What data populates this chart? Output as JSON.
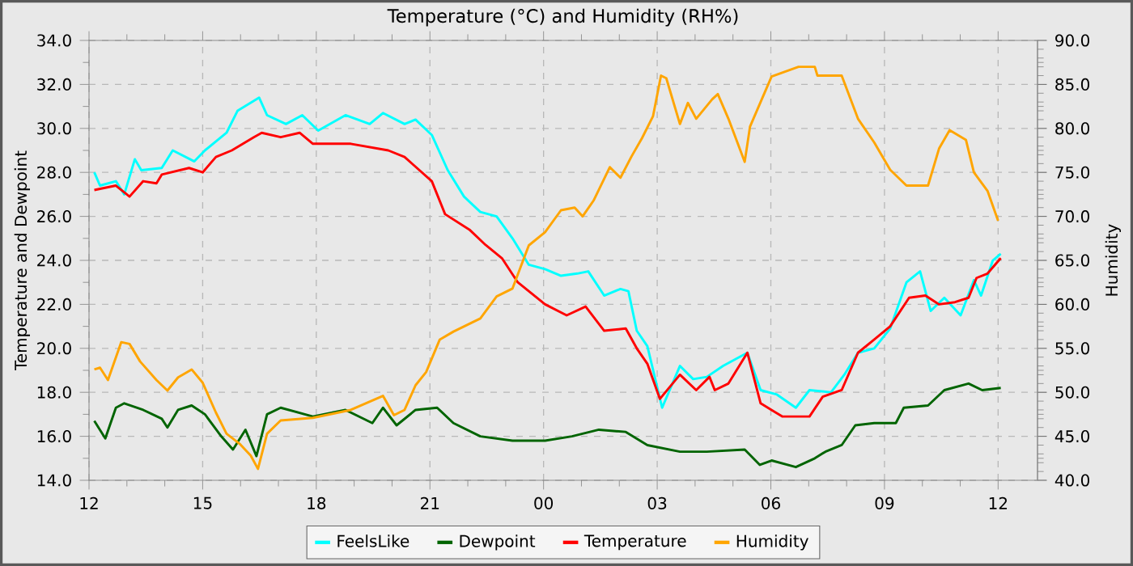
{
  "chart_data": {
    "type": "line",
    "title": "Temperature (°C) and Humidity (RH%)",
    "ylabel": "Temperature and Dewpoint",
    "y2label": "Humidity",
    "xlim": [
      12,
      37.04
    ],
    "xticks": [
      {
        "value": 12,
        "label": "12"
      },
      {
        "value": 15,
        "label": "15"
      },
      {
        "value": 18,
        "label": "18"
      },
      {
        "value": 21,
        "label": "21"
      },
      {
        "value": 24,
        "label": "00"
      },
      {
        "value": 27,
        "label": "03"
      },
      {
        "value": 30,
        "label": "06"
      },
      {
        "value": 33,
        "label": "09"
      },
      {
        "value": 36,
        "label": "12"
      }
    ],
    "ylim": [
      14,
      34
    ],
    "yticks": [
      {
        "value": 14,
        "label": "14.0"
      },
      {
        "value": 16,
        "label": "16.0"
      },
      {
        "value": 18,
        "label": "18.0"
      },
      {
        "value": 20,
        "label": "20.0"
      },
      {
        "value": 22,
        "label": "22.0"
      },
      {
        "value": 24,
        "label": "24.0"
      },
      {
        "value": 26,
        "label": "26.0"
      },
      {
        "value": 28,
        "label": "28.0"
      },
      {
        "value": 30,
        "label": "30.0"
      },
      {
        "value": 32,
        "label": "32.0"
      },
      {
        "value": 34,
        "label": "34.0"
      }
    ],
    "y2lim": [
      40,
      90
    ],
    "y2ticks": [
      {
        "value": 40,
        "label": "40.0"
      },
      {
        "value": 45,
        "label": "45.0"
      },
      {
        "value": 50,
        "label": "50.0"
      },
      {
        "value": 55,
        "label": "55.0"
      },
      {
        "value": 60,
        "label": "60.0"
      },
      {
        "value": 65,
        "label": "65.0"
      },
      {
        "value": 70,
        "label": "70.0"
      },
      {
        "value": 75,
        "label": "75.0"
      },
      {
        "value": 80,
        "label": "80.0"
      },
      {
        "value": 85,
        "label": "85.0"
      },
      {
        "value": 90,
        "label": "90.0"
      }
    ],
    "grid": true,
    "legend": "bottom",
    "series": [
      {
        "name": "FeelsLike",
        "color": "#00ffff",
        "axis": "y",
        "x": [
          12.14,
          12.29,
          12.71,
          12.93,
          13.21,
          13.38,
          13.92,
          14.21,
          14.78,
          15.06,
          15.63,
          15.92,
          16.49,
          16.7,
          17.2,
          17.63,
          18.05,
          18.77,
          19.41,
          19.76,
          20.33,
          20.62,
          21.05,
          21.47,
          21.9,
          22.33,
          22.76,
          23.18,
          23.61,
          24.04,
          24.46,
          24.89,
          25.18,
          25.6,
          26.03,
          26.24,
          26.46,
          26.74,
          27.13,
          27.6,
          27.95,
          28.31,
          28.74,
          29.38,
          29.73,
          30.16,
          30.66,
          31.02,
          31.59,
          31.94,
          32.3,
          32.73,
          33.15,
          33.58,
          33.94,
          34.22,
          34.58,
          35.01,
          35.36,
          35.55,
          35.86,
          36.07
        ],
        "values": [
          28.0,
          27.4,
          27.6,
          27.0,
          28.6,
          28.1,
          28.2,
          29.0,
          28.5,
          29.0,
          29.8,
          30.8,
          31.4,
          30.6,
          30.2,
          30.6,
          29.9,
          30.6,
          30.2,
          30.7,
          30.2,
          30.4,
          29.7,
          28.1,
          26.9,
          26.2,
          26.0,
          25.0,
          23.8,
          23.6,
          23.3,
          23.4,
          23.5,
          22.4,
          22.7,
          22.6,
          20.8,
          20.1,
          17.3,
          19.2,
          18.6,
          18.7,
          19.2,
          19.8,
          18.1,
          17.9,
          17.3,
          18.1,
          18.0,
          18.8,
          19.8,
          20.0,
          20.9,
          23.0,
          23.5,
          21.7,
          22.3,
          21.5,
          23.1,
          22.4,
          24.0,
          24.3
        ]
      },
      {
        "name": "Dewpoint",
        "color": "#006400",
        "axis": "y",
        "x": [
          12.14,
          12.43,
          12.71,
          12.93,
          13.43,
          13.92,
          14.07,
          14.35,
          14.71,
          15.06,
          15.49,
          15.8,
          16.13,
          16.42,
          16.7,
          17.06,
          17.91,
          18.77,
          19.48,
          19.76,
          20.12,
          20.62,
          21.19,
          21.62,
          22.33,
          23.18,
          24.04,
          24.75,
          25.46,
          26.17,
          26.74,
          27.6,
          28.31,
          29.31,
          29.71,
          30.02,
          30.66,
          31.16,
          31.44,
          31.87,
          32.23,
          32.73,
          33.3,
          33.51,
          34.15,
          34.58,
          35.22,
          35.58,
          36.07
        ],
        "values": [
          16.7,
          15.9,
          17.3,
          17.5,
          17.2,
          16.8,
          16.4,
          17.2,
          17.4,
          17.0,
          16.0,
          15.4,
          16.3,
          15.1,
          17.0,
          17.3,
          16.9,
          17.2,
          16.6,
          17.3,
          16.5,
          17.2,
          17.3,
          16.6,
          16.0,
          15.8,
          15.8,
          16.0,
          16.3,
          16.2,
          15.6,
          15.3,
          15.3,
          15.4,
          14.7,
          14.9,
          14.6,
          15.0,
          15.3,
          15.6,
          16.5,
          16.6,
          16.6,
          17.3,
          17.4,
          18.1,
          18.4,
          18.1,
          18.2
        ]
      },
      {
        "name": "Temperature",
        "color": "#ff0000",
        "axis": "y",
        "x": [
          12.14,
          12.71,
          13.07,
          13.43,
          13.78,
          13.92,
          14.64,
          15.0,
          15.35,
          15.77,
          16.35,
          16.56,
          17.06,
          17.56,
          17.91,
          18.91,
          19.9,
          20.33,
          21.05,
          21.4,
          22.04,
          22.47,
          22.9,
          23.32,
          24.04,
          24.61,
          25.11,
          25.6,
          26.17,
          26.46,
          26.74,
          27.07,
          27.6,
          28.03,
          28.38,
          28.52,
          28.88,
          29.38,
          29.73,
          30.3,
          31.02,
          31.37,
          31.87,
          32.3,
          32.73,
          33.15,
          33.65,
          34.08,
          34.44,
          34.86,
          35.22,
          35.43,
          35.72,
          36.07
        ],
        "values": [
          27.2,
          27.4,
          26.9,
          27.6,
          27.5,
          27.9,
          28.2,
          28.0,
          28.7,
          29.0,
          29.6,
          29.8,
          29.6,
          29.8,
          29.3,
          29.3,
          29.0,
          28.7,
          27.6,
          26.1,
          25.4,
          24.7,
          24.1,
          23.0,
          22.0,
          21.5,
          21.9,
          20.8,
          20.9,
          20.0,
          19.3,
          17.7,
          18.8,
          18.1,
          18.7,
          18.1,
          18.4,
          19.8,
          17.5,
          16.9,
          16.9,
          17.8,
          18.1,
          19.8,
          20.4,
          21.0,
          22.3,
          22.4,
          22.0,
          22.1,
          22.3,
          23.2,
          23.4,
          24.1
        ]
      },
      {
        "name": "Humidity",
        "color": "#ffa500",
        "axis": "y2",
        "x": [
          12.14,
          12.29,
          12.5,
          12.85,
          13.07,
          13.35,
          13.78,
          14.07,
          14.35,
          14.71,
          15.0,
          15.35,
          15.63,
          15.99,
          16.27,
          16.46,
          16.7,
          17.06,
          17.91,
          18.91,
          19.76,
          20.05,
          20.33,
          20.62,
          20.9,
          21.26,
          21.62,
          22.33,
          22.76,
          23.18,
          23.61,
          24.04,
          24.46,
          24.82,
          25.03,
          25.32,
          25.75,
          26.03,
          26.32,
          26.6,
          26.89,
          27.1,
          27.24,
          27.6,
          27.81,
          28.03,
          28.45,
          28.6,
          28.88,
          29.31,
          29.45,
          29.73,
          30.02,
          30.73,
          31.16,
          31.23,
          31.87,
          32.3,
          32.73,
          33.15,
          33.58,
          34.15,
          34.44,
          34.72,
          35.15,
          35.36,
          35.72,
          36.0
        ],
        "values": [
          52.6,
          52.8,
          51.4,
          55.7,
          55.5,
          53.5,
          51.4,
          50.2,
          51.7,
          52.6,
          51.1,
          47.7,
          45.3,
          44.1,
          42.8,
          41.3,
          45.3,
          46.8,
          47.1,
          48.0,
          49.6,
          47.4,
          48.0,
          50.8,
          52.3,
          56.0,
          56.9,
          58.4,
          60.9,
          61.8,
          66.7,
          68.2,
          70.7,
          71.0,
          70.0,
          71.8,
          75.6,
          74.4,
          76.8,
          78.9,
          81.4,
          86.0,
          85.7,
          80.5,
          82.9,
          81.1,
          83.3,
          83.9,
          81.1,
          76.2,
          80.2,
          83.0,
          85.9,
          87.0,
          87.0,
          86.0,
          86.0,
          81.1,
          78.4,
          75.3,
          73.5,
          73.5,
          77.7,
          79.8,
          78.7,
          75.0,
          72.9,
          69.5
        ]
      }
    ]
  }
}
